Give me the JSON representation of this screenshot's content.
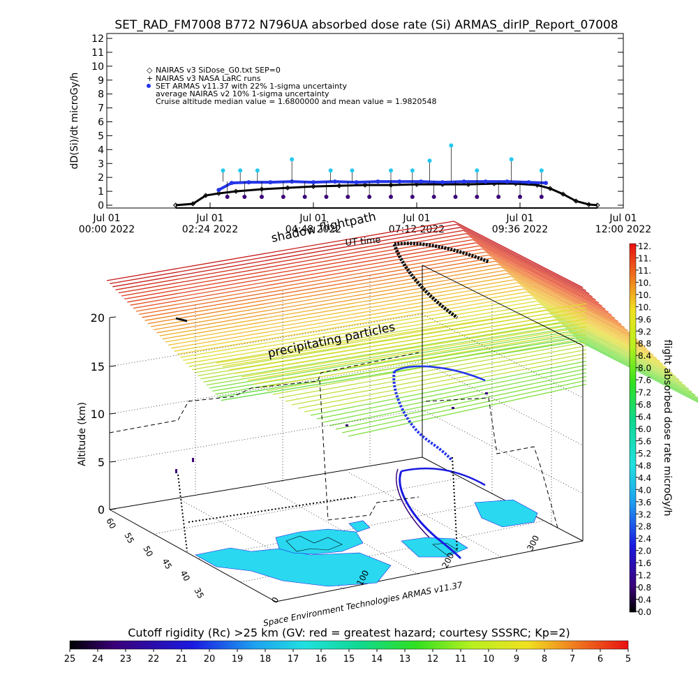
{
  "title": "SET_RAD_FM7008  B772 N796UA absorbed dose rate (Si) ARMAS_dirIP_Report_07008",
  "colors": {
    "nairas_marker": "#000000",
    "armas_marker": "#2436e8",
    "profile_line": "#000000",
    "land_fill": "#2ad8f0"
  },
  "chart_data": [
    {
      "type": "line",
      "title": "",
      "ylabel": "dD(Si)/dt microGy/h",
      "ylim": [
        0,
        12
      ],
      "y_ticks": [
        "0",
        "1",
        "2",
        "3",
        "4",
        "5",
        "6",
        "7",
        "8",
        "9",
        "10",
        "11",
        "12"
      ],
      "x_tick_labels": [
        {
          "line1": "Jul 01",
          "line2": "00:00 2022"
        },
        {
          "line1": "Jul 01",
          "line2": "02:24 2022"
        },
        {
          "line1": "Jul 01",
          "line2": "04:48 2022"
        },
        {
          "line1": "Jul 01",
          "line2": "07:12 2022"
        },
        {
          "line1": "Jul 01",
          "line2": "09:36 2022"
        },
        {
          "line1": "Jul 01",
          "line2": "12:00 2022"
        }
      ],
      "x_hours_range": [
        0,
        12
      ],
      "legend": [
        "NAIRAS v3 SiDose_G0.txt SEP=0",
        "NAIRAS v3 NASA LaRC runs",
        "SET ARMAS v11.37 with 22% 1-sigma uncertainty",
        "average NAIRAS v2 10% 1-sigma uncertainty",
        "Cruise altitude median value = 1.6800000 and mean value = 1.9820548"
      ],
      "series": [
        {
          "name": "NAIRAS v3 SiDose_G0.txt SEP=0",
          "marker": "diamond",
          "x": [
            1.6,
            2.0,
            2.3,
            2.6,
            3.0,
            3.6,
            4.2,
            4.8,
            5.4,
            6.0,
            6.6,
            7.2,
            7.8,
            8.4,
            9.0,
            9.5,
            10.0,
            10.3,
            10.6,
            10.9,
            11.2,
            11.4
          ],
          "y": [
            0.0,
            0.1,
            0.7,
            0.85,
            1.0,
            1.15,
            1.25,
            1.35,
            1.4,
            1.45,
            1.45,
            1.5,
            1.5,
            1.5,
            1.55,
            1.55,
            1.45,
            1.2,
            0.8,
            0.3,
            0.05,
            0.0
          ]
        },
        {
          "name": "SET ARMAS v11.37 with 22% 1-sigma uncertainty",
          "marker": "circle",
          "x": [
            2.6,
            2.9,
            3.3,
            3.8,
            4.3,
            4.8,
            5.3,
            5.8,
            6.3,
            6.8,
            7.3,
            7.8,
            8.3,
            8.8,
            9.3,
            9.8,
            10.2
          ],
          "y": [
            1.1,
            1.6,
            1.65,
            1.65,
            1.7,
            1.65,
            1.7,
            1.65,
            1.7,
            1.7,
            1.7,
            1.65,
            1.7,
            1.7,
            1.7,
            1.65,
            1.6
          ]
        },
        {
          "name": "ARMAS high samples",
          "marker": "circle",
          "x": [
            2.7,
            3.1,
            3.5,
            4.3,
            5.2,
            5.7,
            6.6,
            7.1,
            7.5,
            8.0,
            8.6,
            9.4,
            10.1
          ],
          "y": [
            2.5,
            2.5,
            2.5,
            3.3,
            2.5,
            2.5,
            2.5,
            2.5,
            3.2,
            4.3,
            2.5,
            3.3,
            2.5
          ]
        },
        {
          "name": "ARMAS low samples",
          "marker": "circle",
          "x": [
            2.8,
            3.2,
            3.6,
            4.1,
            4.6,
            5.1,
            5.6,
            6.1,
            6.6,
            7.1,
            7.6,
            8.1,
            8.6,
            9.1,
            9.6,
            10.1
          ],
          "y": [
            0.6,
            0.6,
            0.6,
            0.6,
            0.6,
            0.6,
            0.6,
            0.6,
            0.6,
            0.6,
            0.6,
            0.6,
            0.6,
            0.6,
            0.6,
            0.6
          ]
        }
      ]
    },
    {
      "type": "scatter",
      "title": "",
      "zlabel": "Altitude (km)",
      "z_ticks": [
        "0",
        "5",
        "10",
        "15",
        "20"
      ],
      "lat_ticks": [
        "60",
        "55",
        "50",
        "45",
        "40",
        "35"
      ],
      "lon_ticks": [
        "0",
        "100",
        "200",
        "300"
      ],
      "plane_labels": [
        "shadow flightpath",
        "UT time",
        "precipitating particles"
      ],
      "credit": "Space Environment Technologies ARMAS v11.37",
      "colorbar_label": "flight absorbed dose rate microGy/h",
      "colorbar_ticks": [
        "0.0",
        "0.4",
        "0.8",
        "1.2",
        "1.6",
        "2.0",
        "2.4",
        "2.8",
        "3.2",
        "3.6",
        "4.0",
        "4.4",
        "4.8",
        "5.2",
        "5.6",
        "6.0",
        "6.4",
        "6.8",
        "7.2",
        "7.6",
        "8.0",
        "8.4",
        "8.8",
        "9.2",
        "9.6",
        "10.",
        "10.",
        "10.",
        "11.",
        "11.",
        "12."
      ]
    }
  ],
  "rigidity_bar": {
    "label": "Cutoff rigidity (Rc) >25 km (GV: red = greatest hazard; courtesy SSSRC; Kp=2)",
    "ticks": [
      "25",
      "24",
      "23",
      "22",
      "21",
      "20",
      "19",
      "18",
      "17",
      "16",
      "15",
      "14",
      "13",
      "12",
      "11",
      "10",
      "9",
      "8",
      "7",
      "6",
      "5"
    ]
  }
}
